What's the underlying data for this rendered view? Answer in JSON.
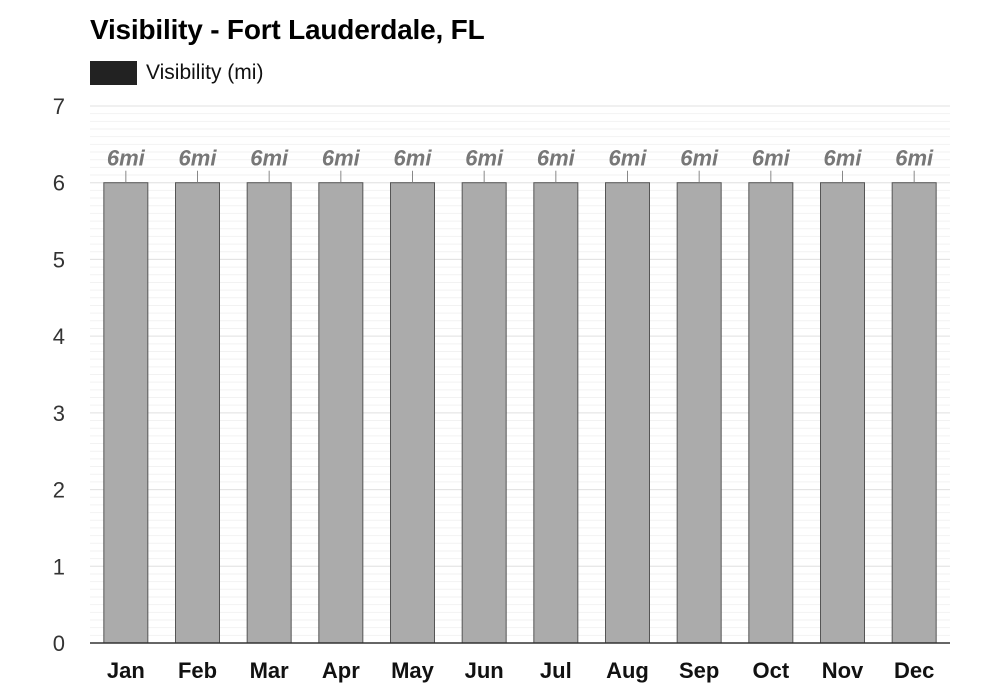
{
  "chart_data": {
    "type": "bar",
    "title": "Visibility - Fort Lauderdale, FL",
    "legend": {
      "label": "Visibility (mi)",
      "color": "#222222",
      "placement": "top-left"
    },
    "categories": [
      "Jan",
      "Feb",
      "Mar",
      "Apr",
      "May",
      "Jun",
      "Jul",
      "Aug",
      "Sep",
      "Oct",
      "Nov",
      "Dec"
    ],
    "series": [
      {
        "name": "Visibility (mi)",
        "values": [
          6,
          6,
          6,
          6,
          6,
          6,
          6,
          6,
          6,
          6,
          6,
          6
        ]
      }
    ],
    "data_labels": [
      "6mi",
      "6mi",
      "6mi",
      "6mi",
      "6mi",
      "6mi",
      "6mi",
      "6mi",
      "6mi",
      "6mi",
      "6mi",
      "6mi"
    ],
    "yticks": [
      "0",
      "1",
      "2",
      "3",
      "4",
      "5",
      "6",
      "7"
    ],
    "ylim": [
      0,
      7
    ],
    "xlabel": "",
    "ylabel": "",
    "grid": true,
    "colors": {
      "bar_fill": "#ababab",
      "bar_stroke": "#555555",
      "label": "#777777",
      "grid": "#e2e2e2"
    }
  }
}
